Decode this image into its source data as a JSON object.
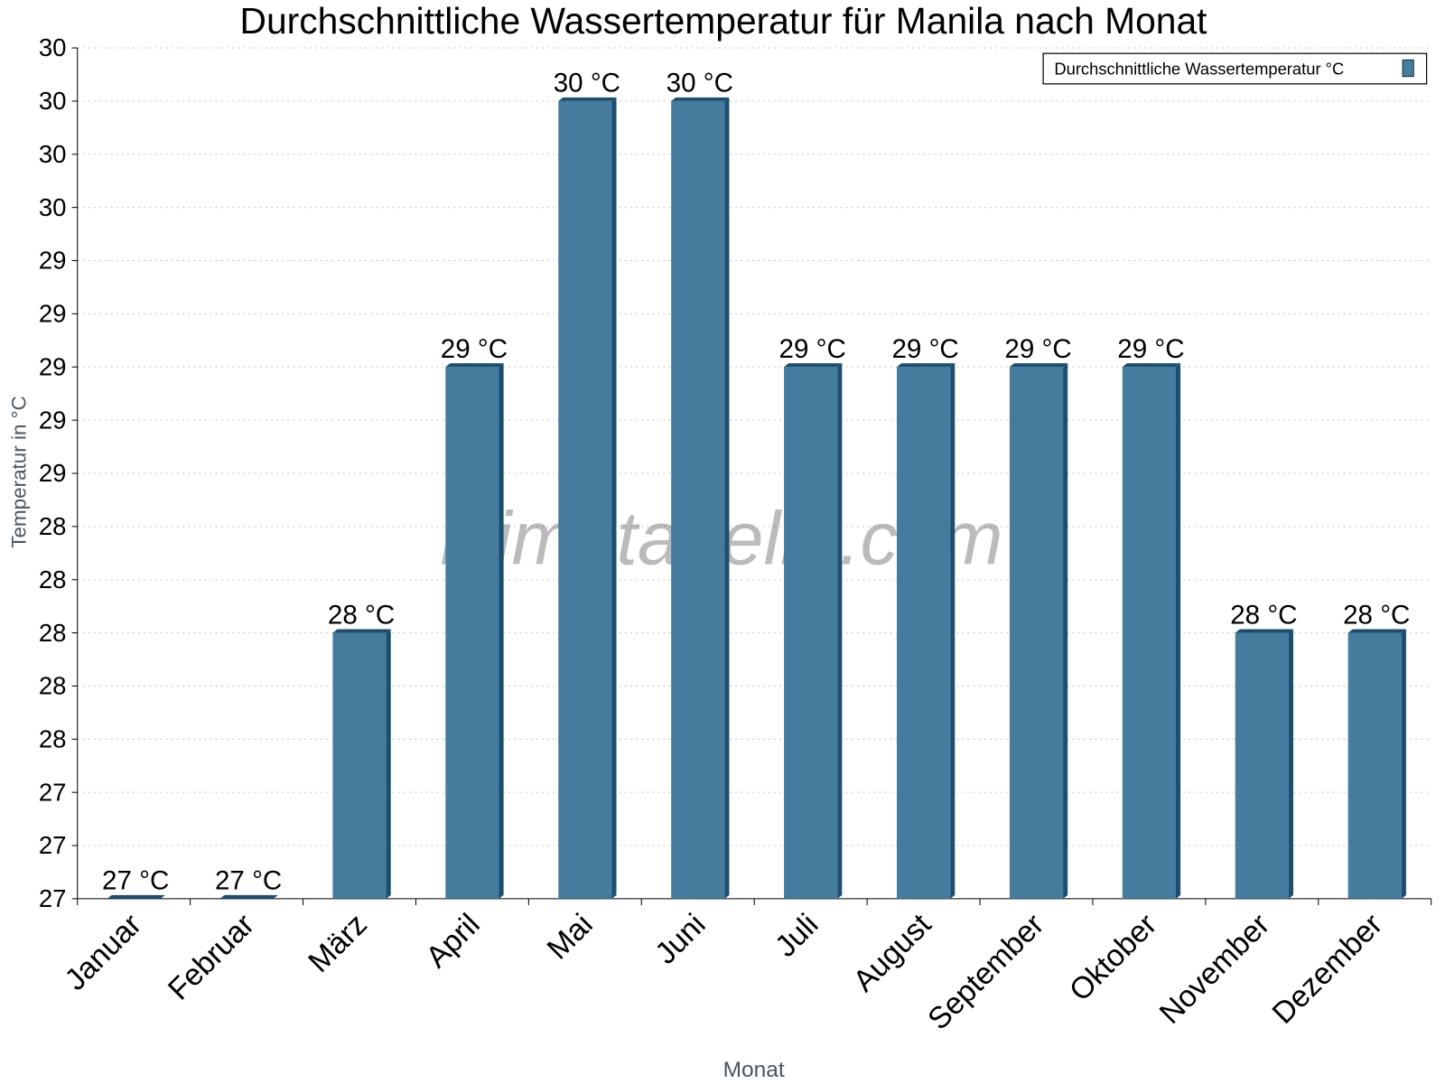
{
  "chart_data": {
    "type": "bar",
    "title": "Durchschnittliche Wassertemperatur für Manila nach Monat",
    "xlabel": "Monat",
    "ylabel": "Temperatur in °C",
    "categories": [
      "Januar",
      "Februar",
      "März",
      "April",
      "Mai",
      "Juni",
      "Juli",
      "August",
      "September",
      "Oktober",
      "November",
      "Dezember"
    ],
    "series": [
      {
        "name": "Durchschnittliche Wassertemperatur °C",
        "values": [
          27,
          27,
          28,
          29,
          30,
          30,
          29,
          29,
          29,
          29,
          28,
          28
        ]
      }
    ],
    "data_labels": [
      "27 °C",
      "27 °C",
      "28 °C",
      "29 °C",
      "30 °C",
      "30 °C",
      "29 °C",
      "29 °C",
      "29 °C",
      "29 °C",
      "28 °C",
      "28 °C"
    ],
    "ylim": [
      27.0,
      30.2
    ],
    "yticks": [
      27.0,
      27.2,
      27.4,
      27.6,
      27.8,
      28.0,
      28.2,
      28.4,
      28.6,
      28.8,
      29.0,
      29.2,
      29.4,
      29.6,
      29.8,
      30.0,
      30.2
    ],
    "ytick_labels": [
      "27",
      "27",
      "27",
      "28",
      "28",
      "28",
      "28",
      "28",
      "29",
      "29",
      "29",
      "29",
      "29",
      "30",
      "30",
      "30",
      "30"
    ],
    "grid": true,
    "legend_position": "top-right",
    "colors": {
      "bar": "#457b9d",
      "bar_dark": "#1d4e6e"
    }
  },
  "watermark": "klimatabelle.com"
}
